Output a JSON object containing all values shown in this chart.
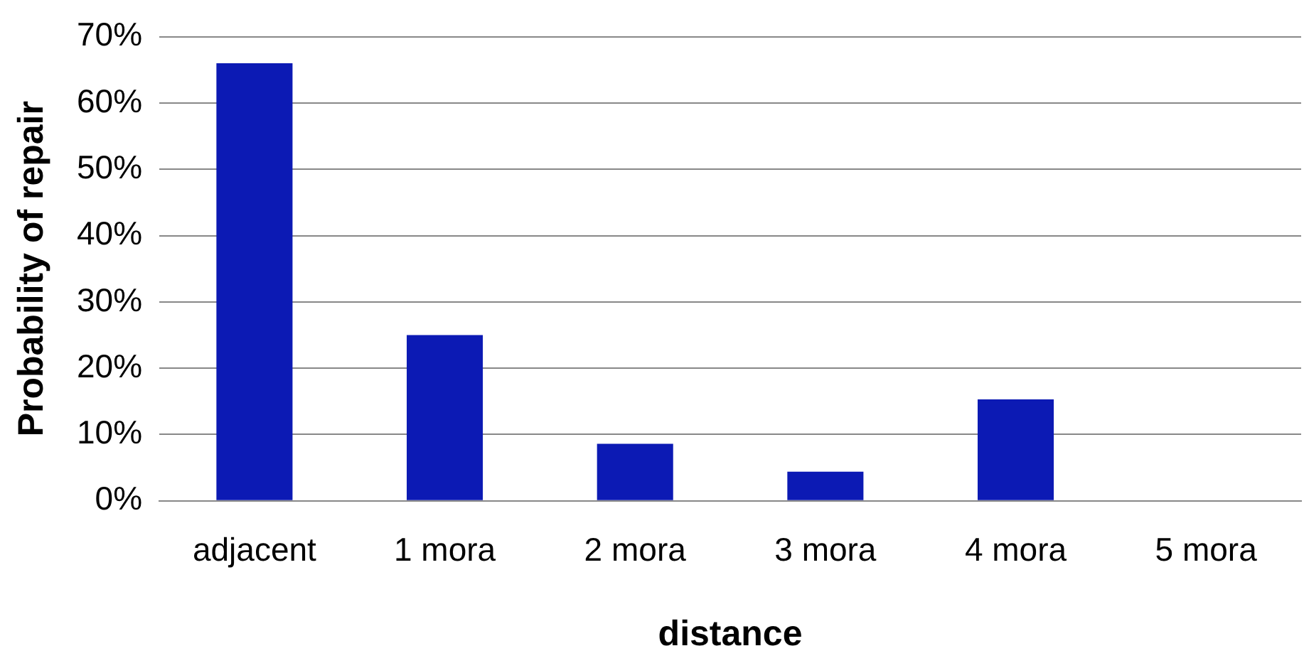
{
  "chart_data": {
    "type": "bar",
    "xlabel": "distance",
    "ylabel": "Probability of repair",
    "categories": [
      "adjacent",
      "1 mora",
      "2 mora",
      "3 mora",
      "4 mora",
      "5 mora"
    ],
    "values": [
      0.66,
      0.25,
      0.086,
      0.044,
      0.153,
      0
    ],
    "color": "#0c1ab4",
    "ylim": [
      0,
      0.7
    ],
    "yticks": [
      {
        "value": 0,
        "label": "0%"
      },
      {
        "value": 0.1,
        "label": "10%"
      },
      {
        "value": 0.2,
        "label": "20%"
      },
      {
        "value": 0.3,
        "label": "30%"
      },
      {
        "value": 0.4,
        "label": "40%"
      },
      {
        "value": 0.5,
        "label": "50%"
      },
      {
        "value": 0.6,
        "label": "60%"
      },
      {
        "value": 0.7,
        "label": "70%"
      }
    ],
    "grid": "y",
    "legend": false
  }
}
